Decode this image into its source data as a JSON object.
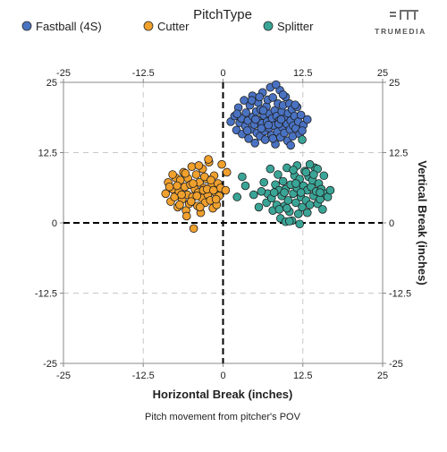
{
  "brand": {
    "name": "TRUMEDIA"
  },
  "chart_data": {
    "type": "scatter",
    "legend": {
      "title": "PitchType",
      "placement": "top"
    },
    "xlabel": "Horizontal Break (inches)",
    "ylabel": "Vertical Break (inches)",
    "caption": "Pitch movement from pitcher's POV",
    "xlim": [
      -25,
      25
    ],
    "ylim": [
      -25,
      25
    ],
    "xticks": [
      "-25",
      "-12.5",
      "0",
      "12.5",
      "25"
    ],
    "yticks": [
      "25",
      "12.5",
      "0",
      "-12.5",
      "-25"
    ],
    "x_tick_values": [
      -25,
      -12.5,
      0,
      12.5,
      25
    ],
    "y_tick_values": [
      25,
      12.5,
      0,
      -12.5,
      -25
    ],
    "grid": true,
    "reference_lines": [
      0
    ],
    "series": [
      {
        "name": "Fastball (4S)",
        "color": "#4a72c2",
        "points": [
          [
            1.2,
            18.0
          ],
          [
            1.8,
            19.0
          ],
          [
            2.1,
            16.5
          ],
          [
            2.4,
            20.5
          ],
          [
            2.6,
            17.8
          ],
          [
            2.9,
            18.6
          ],
          [
            3.0,
            15.8
          ],
          [
            3.3,
            21.8
          ],
          [
            3.5,
            17.2
          ],
          [
            3.6,
            19.6
          ],
          [
            3.9,
            18.2
          ],
          [
            4.0,
            15.0
          ],
          [
            4.2,
            20.9
          ],
          [
            4.4,
            16.6
          ],
          [
            4.6,
            22.6
          ],
          [
            4.7,
            18.9
          ],
          [
            4.9,
            17.5
          ],
          [
            5.0,
            14.2
          ],
          [
            5.2,
            19.8
          ],
          [
            5.3,
            16.0
          ],
          [
            5.5,
            21.4
          ],
          [
            5.6,
            18.3
          ],
          [
            5.8,
            15.4
          ],
          [
            5.9,
            20.2
          ],
          [
            6.1,
            17.7
          ],
          [
            6.2,
            23.2
          ],
          [
            6.4,
            19.1
          ],
          [
            6.5,
            16.3
          ],
          [
            6.6,
            14.8
          ],
          [
            6.8,
            20.7
          ],
          [
            6.9,
            18.0
          ],
          [
            7.0,
            21.9
          ],
          [
            7.2,
            16.9
          ],
          [
            7.3,
            19.4
          ],
          [
            7.4,
            24.1
          ],
          [
            7.6,
            15.6
          ],
          [
            7.7,
            18.6
          ],
          [
            7.8,
            22.3
          ],
          [
            8.0,
            17.3
          ],
          [
            8.1,
            20.0
          ],
          [
            8.2,
            14.0
          ],
          [
            8.4,
            19.0
          ],
          [
            8.5,
            16.2
          ],
          [
            8.6,
            21.2
          ],
          [
            8.8,
            18.2
          ],
          [
            8.9,
            23.6
          ],
          [
            9.0,
            15.2
          ],
          [
            9.2,
            19.8
          ],
          [
            9.3,
            17.0
          ],
          [
            9.4,
            20.9
          ],
          [
            9.6,
            16.0
          ],
          [
            9.7,
            18.6
          ],
          [
            9.8,
            22.4
          ],
          [
            10.0,
            17.6
          ],
          [
            10.1,
            14.6
          ],
          [
            10.2,
            19.5
          ],
          [
            10.4,
            21.2
          ],
          [
            10.5,
            16.6
          ],
          [
            10.6,
            18.2
          ],
          [
            10.8,
            20.2
          ],
          [
            10.9,
            15.4
          ],
          [
            11.0,
            17.3
          ],
          [
            11.2,
            19.0
          ],
          [
            11.4,
            16.8
          ],
          [
            11.6,
            20.6
          ],
          [
            11.8,
            18.0
          ],
          [
            12.0,
            15.8
          ],
          [
            12.2,
            19.2
          ],
          [
            12.6,
            17.4
          ],
          [
            13.2,
            18.4
          ],
          [
            4.5,
            21.8
          ],
          [
            6.0,
            16.8
          ],
          [
            7.8,
            15.0
          ],
          [
            9.4,
            22.8
          ],
          [
            10.6,
            13.8
          ],
          [
            5.7,
            22.4
          ],
          [
            8.7,
            17.6
          ],
          [
            3.8,
            16.4
          ],
          [
            7.1,
            17.4
          ],
          [
            6.3,
            20.0
          ],
          [
            9.1,
            18.4
          ],
          [
            11.3,
            21.0
          ],
          [
            2.2,
            19.4
          ],
          [
            12.4,
            16.4
          ],
          [
            8.3,
            24.6
          ],
          [
            5.1,
            18.4
          ]
        ]
      },
      {
        "name": "Cutter",
        "color": "#f0a02d",
        "points": [
          [
            -9.0,
            5.2
          ],
          [
            -8.6,
            7.2
          ],
          [
            -8.2,
            3.8
          ],
          [
            -7.9,
            6.0
          ],
          [
            -7.6,
            4.6
          ],
          [
            -7.4,
            8.0
          ],
          [
            -7.1,
            2.8
          ],
          [
            -6.9,
            5.6
          ],
          [
            -6.7,
            7.6
          ],
          [
            -6.4,
            4.2
          ],
          [
            -6.2,
            9.0
          ],
          [
            -6.0,
            6.4
          ],
          [
            -5.8,
            2.2
          ],
          [
            -5.6,
            5.0
          ],
          [
            -5.5,
            7.9
          ],
          [
            -5.3,
            3.4
          ],
          [
            -5.1,
            6.8
          ],
          [
            -4.9,
            10.0
          ],
          [
            -4.8,
            4.6
          ],
          [
            -4.6,
            -1.0
          ],
          [
            -4.4,
            6.0
          ],
          [
            -4.2,
            8.6
          ],
          [
            -4.0,
            3.0
          ],
          [
            -3.9,
            5.4
          ],
          [
            -3.7,
            7.2
          ],
          [
            -3.5,
            1.8
          ],
          [
            -3.3,
            4.4
          ],
          [
            -3.2,
            9.6
          ],
          [
            -3.0,
            6.2
          ],
          [
            -2.8,
            3.6
          ],
          [
            -2.6,
            7.8
          ],
          [
            -2.4,
            5.0
          ],
          [
            -2.2,
            10.8
          ],
          [
            -2.0,
            4.0
          ],
          [
            -1.8,
            6.6
          ],
          [
            -1.6,
            2.6
          ],
          [
            -1.4,
            8.4
          ],
          [
            -1.2,
            5.4
          ],
          [
            -1.0,
            3.2
          ],
          [
            -0.8,
            7.0
          ],
          [
            -0.6,
            4.8
          ],
          [
            -0.4,
            6.2
          ],
          [
            0.4,
            5.8
          ],
          [
            0.6,
            9.0
          ],
          [
            -2.3,
            11.3
          ],
          [
            -7.9,
            8.6
          ],
          [
            -5.7,
            1.2
          ],
          [
            -3.6,
            2.8
          ],
          [
            -6.5,
            5.0
          ],
          [
            -4.7,
            7.0
          ],
          [
            -2.9,
            8.2
          ],
          [
            -1.1,
            4.2
          ],
          [
            -8.4,
            6.4
          ],
          [
            -3.1,
            5.8
          ],
          [
            -5.0,
            3.8
          ],
          [
            -2.5,
            6.0
          ],
          [
            -6.8,
            3.2
          ],
          [
            -4.1,
            4.8
          ],
          [
            -1.9,
            7.6
          ],
          [
            -0.2,
            10.4
          ],
          [
            -7.2,
            6.6
          ],
          [
            -3.8,
            10.2
          ],
          [
            -5.9,
            8.8
          ],
          [
            -1.5,
            5.8
          ]
        ]
      },
      {
        "name": "Splitter",
        "color": "#3aa597",
        "points": [
          [
            2.2,
            4.6
          ],
          [
            3.0,
            8.2
          ],
          [
            3.5,
            6.6
          ],
          [
            4.8,
            5.0
          ],
          [
            5.6,
            2.8
          ],
          [
            6.4,
            7.2
          ],
          [
            6.8,
            3.6
          ],
          [
            7.0,
            5.2
          ],
          [
            7.4,
            9.6
          ],
          [
            7.6,
            4.4
          ],
          [
            7.8,
            2.2
          ],
          [
            8.2,
            6.8
          ],
          [
            8.4,
            3.2
          ],
          [
            8.6,
            8.6
          ],
          [
            8.8,
            5.8
          ],
          [
            9.0,
            0.8
          ],
          [
            9.2,
            4.8
          ],
          [
            9.4,
            7.4
          ],
          [
            9.6,
            3.0
          ],
          [
            9.8,
            6.0
          ],
          [
            10.0,
            9.8
          ],
          [
            10.2,
            4.0
          ],
          [
            10.4,
            2.0
          ],
          [
            10.6,
            6.8
          ],
          [
            10.8,
            0.4
          ],
          [
            11.0,
            5.2
          ],
          [
            11.2,
            8.4
          ],
          [
            11.4,
            3.6
          ],
          [
            11.6,
            6.2
          ],
          [
            11.8,
            1.6
          ],
          [
            12.0,
            7.8
          ],
          [
            12.2,
            4.6
          ],
          [
            12.4,
            2.8
          ],
          [
            12.6,
            6.6
          ],
          [
            12.8,
            9.2
          ],
          [
            13.0,
            4.0
          ],
          [
            13.2,
            5.8
          ],
          [
            13.4,
            8.2
          ],
          [
            13.6,
            3.2
          ],
          [
            13.8,
            6.4
          ],
          [
            14.0,
            7.6
          ],
          [
            14.2,
            4.8
          ],
          [
            14.4,
            9.8
          ],
          [
            14.6,
            5.6
          ],
          [
            14.8,
            3.4
          ],
          [
            15.0,
            7.0
          ],
          [
            15.2,
            4.2
          ],
          [
            15.4,
            6.0
          ],
          [
            15.6,
            2.4
          ],
          [
            15.8,
            8.4
          ],
          [
            16.0,
            5.2
          ],
          [
            16.4,
            4.6
          ],
          [
            16.8,
            5.8
          ],
          [
            12.4,
            14.8
          ],
          [
            9.8,
            0.2
          ],
          [
            12.0,
            -0.2
          ],
          [
            10.4,
            0.3
          ],
          [
            13.0,
            9.0
          ],
          [
            14.8,
            9.6
          ],
          [
            11.6,
            10.2
          ],
          [
            8.0,
            5.4
          ],
          [
            6.0,
            5.6
          ],
          [
            12.2,
            5.4
          ],
          [
            13.2,
            1.8
          ],
          [
            14.2,
            8.6
          ],
          [
            11.0,
            9.4
          ],
          [
            9.6,
            5.4
          ],
          [
            15.2,
            5.4
          ],
          [
            10.0,
            2.6
          ],
          [
            8.8,
            2.4
          ],
          [
            13.6,
            10.4
          ],
          [
            11.4,
            7.0
          ]
        ]
      }
    ]
  }
}
